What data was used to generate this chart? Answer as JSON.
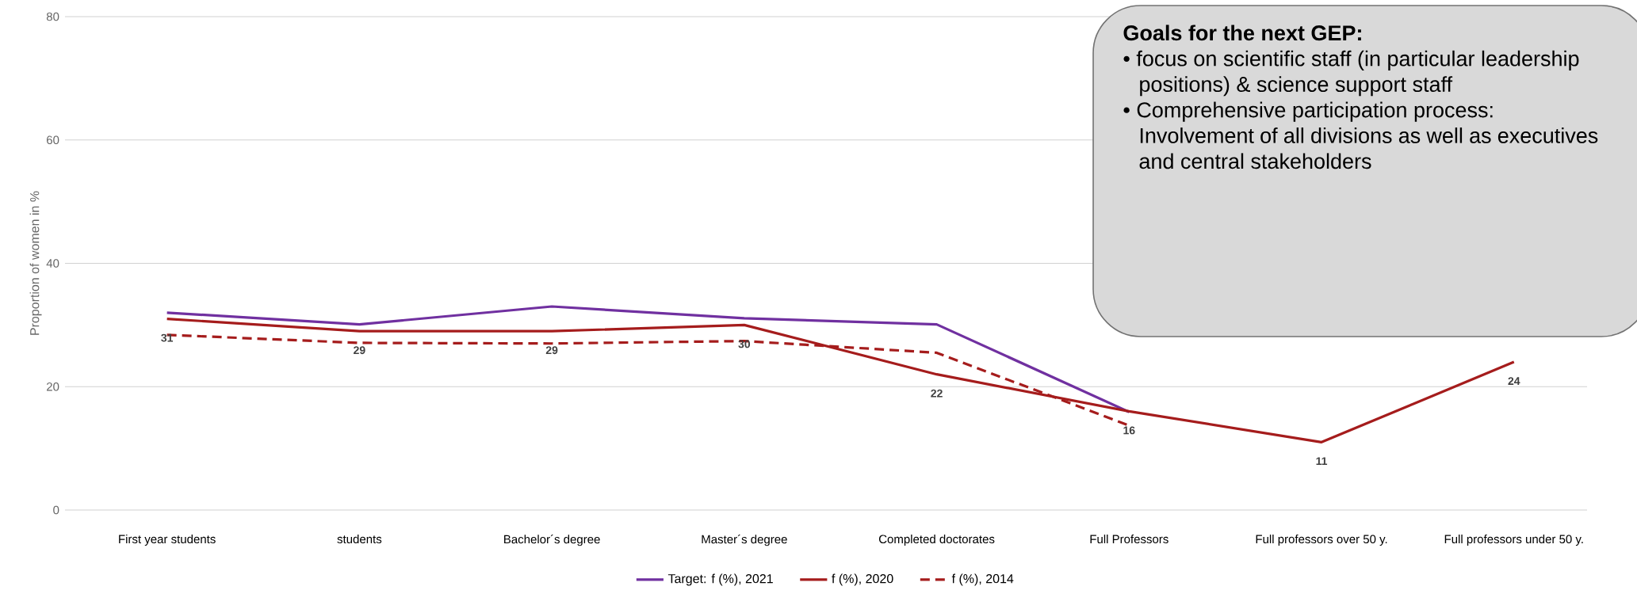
{
  "chart_data": {
    "type": "line",
    "ylabel": "Proportion of women in  %",
    "categories": [
      "First year students",
      "students",
      "Bachelor´s degree",
      "Master´s degree",
      "Completed doctorates",
      "Full Professors",
      "Full professors over 50 y.",
      "Full professors under 50 y."
    ],
    "series": [
      {
        "name": "Target: f (%), 2021",
        "color": "#7030a0",
        "values": [
          32,
          30.1,
          33,
          31.1,
          30.1,
          15.9,
          null,
          null
        ]
      },
      {
        "name": "f (%), 2020",
        "color": "#a51c1c",
        "values": [
          31,
          29,
          29,
          30,
          22,
          16,
          11,
          24
        ],
        "value_labels": [
          "31",
          "29",
          "29",
          "30",
          "22",
          "16",
          "11",
          "24"
        ]
      },
      {
        "name": "f (%), 2014",
        "color": "#a51c1c",
        "line_style": "dashed",
        "values": [
          28.4,
          27.1,
          27,
          27.4,
          25.5,
          13.7,
          null,
          null
        ]
      }
    ],
    "ylim": [
      0,
      80
    ],
    "yticks": [
      0,
      20,
      40,
      60,
      80
    ],
    "grid": "y",
    "legend": "bottom",
    "marker": "none",
    "line_style": "solid",
    "annotations": [
      "Goals for the next GEP:",
      "• focus on scientific staff (in particular leadership positions) & science support staff",
      "• Comprehensive participation process: Involvement of all divisions as well as executives and central stakeholders"
    ]
  }
}
